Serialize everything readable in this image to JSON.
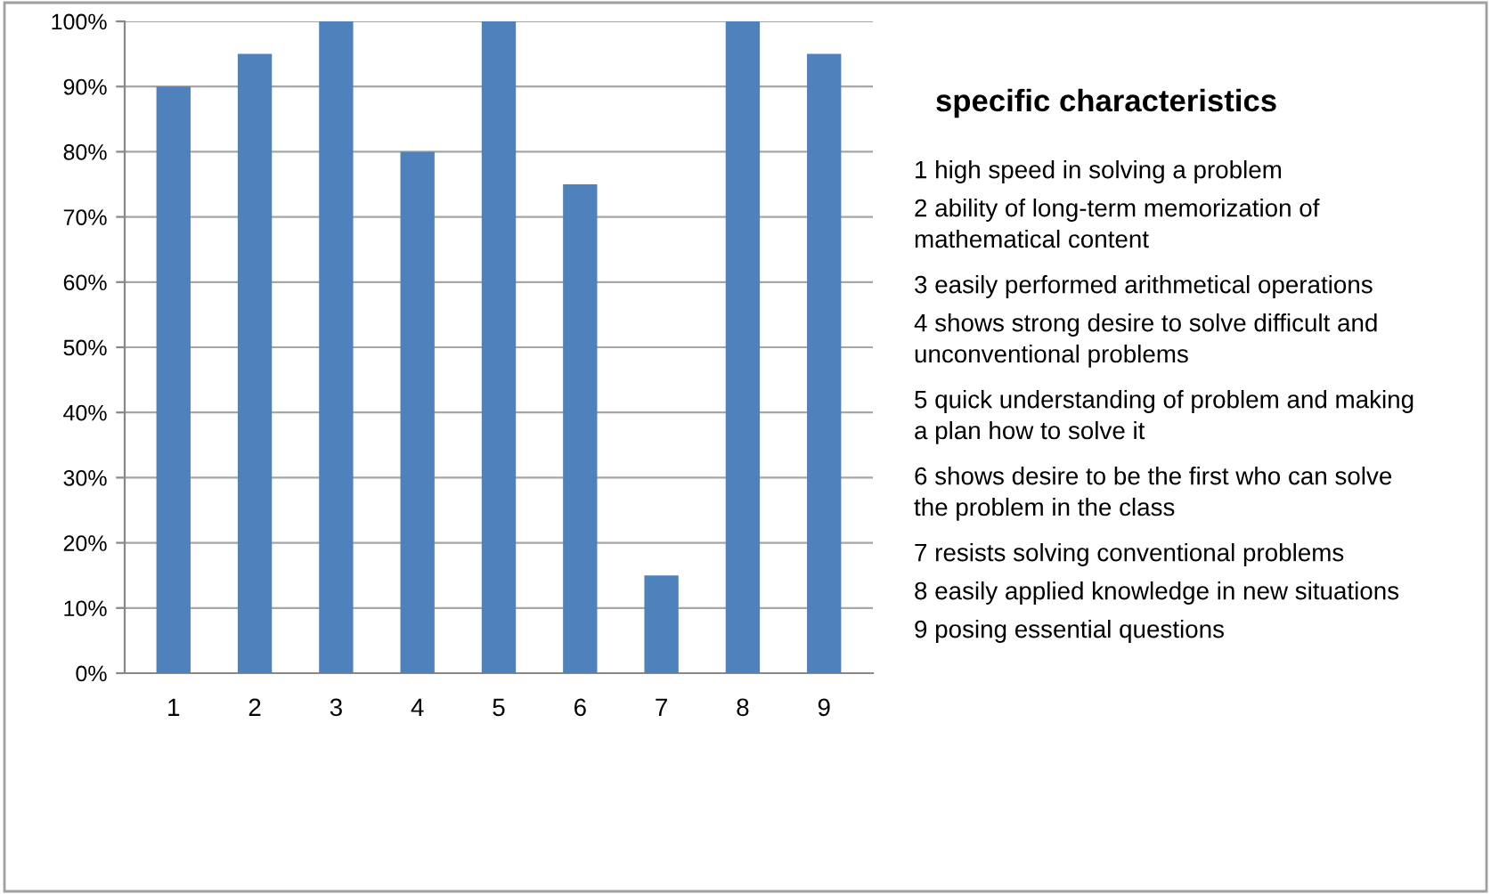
{
  "chart_data": {
    "type": "bar",
    "title": "specific characteristics",
    "categories": [
      "1",
      "2",
      "3",
      "4",
      "5",
      "6",
      "7",
      "8",
      "9"
    ],
    "values": [
      0.9,
      0.95,
      1.0,
      0.8,
      1.0,
      0.75,
      0.15,
      1.0,
      0.95
    ],
    "color": "#4f81bd",
    "ylim": [
      0,
      1
    ],
    "yticks": [
      {
        "value": 0,
        "label": "0%"
      },
      {
        "value": 0.1,
        "label": "10%"
      },
      {
        "value": 0.2,
        "label": "20%"
      },
      {
        "value": 0.3,
        "label": "30%"
      },
      {
        "value": 0.4,
        "label": "40%"
      },
      {
        "value": 0.5,
        "label": "50%"
      },
      {
        "value": 0.6,
        "label": "60%"
      },
      {
        "value": 0.7,
        "label": "70%"
      },
      {
        "value": 0.8,
        "label": "80%"
      },
      {
        "value": 0.9,
        "label": "90%"
      },
      {
        "value": 1,
        "label": "100%"
      }
    ],
    "grid": "y",
    "annotations": [
      "1 high speed in solving a problem",
      "2 ability of long-term memorization of mathematical content",
      "3 easily performed arithmetical operations",
      "4 shows strong desire to solve difficult and unconventional problems",
      "5 quick understanding of problem and making a plan how to solve it",
      "6 shows desire to be the first who can solve the problem in the class",
      "7 resists solving conventional problems",
      "8 easily applied knowledge in new situations",
      "9 posing essential questions"
    ]
  }
}
